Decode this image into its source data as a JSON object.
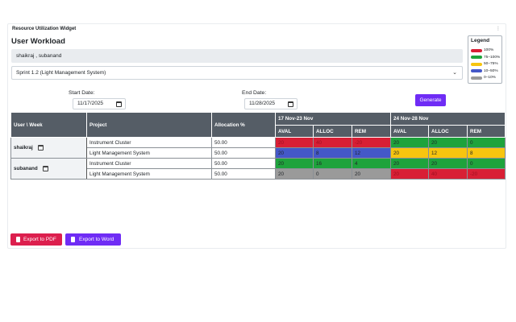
{
  "widget": {
    "title": "Resource Utilization Widget",
    "menu_icon": "kebab-icon"
  },
  "heading": "User Workload",
  "users_value": "shaikraj , subanand",
  "sprint": {
    "selected": "Sprint 1.2 (Light Management System)"
  },
  "legend": {
    "title": "Legend",
    "items": [
      {
        "label": "100%",
        "color": "#d81f35"
      },
      {
        "label": "75–100%",
        "color": "#1ea33c"
      },
      {
        "label": "50–75%",
        "color": "#f7c50f"
      },
      {
        "label": "10–50%",
        "color": "#4458c8"
      },
      {
        "label": "0–10%",
        "color": "#9a9a9a"
      }
    ]
  },
  "filters": {
    "start_label": "Start Date:",
    "start_value": "11/17/2025",
    "end_label": "End Date:",
    "end_value": "11/28/2025",
    "generate_label": "Generate"
  },
  "table": {
    "headers": {
      "user_week": "User \\ Week",
      "project": "Project",
      "allocation": "Allocation %",
      "week1": "17 Nov-23 Nov",
      "week2": "24 Nov-28 Nov",
      "aval": "AVAL",
      "alloc": "ALLOC",
      "rem": "REM"
    },
    "users": [
      {
        "name": "shaikraj",
        "rows": [
          {
            "project": "Instrument Cluster",
            "allocation": "50.00",
            "w1": [
              "20",
              "40",
              "-20"
            ],
            "w1c": [
              "red",
              "red",
              "red"
            ],
            "w2": [
              "20",
              "20",
              "0"
            ],
            "w2c": [
              "green",
              "green",
              "green"
            ]
          },
          {
            "project": "Light Management System",
            "allocation": "50.00",
            "w1": [
              "20",
              "8",
              "12"
            ],
            "w1c": [
              "blue",
              "blue",
              "blue"
            ],
            "w2": [
              "20",
              "12",
              "8"
            ],
            "w2c": [
              "yellow",
              "yellow",
              "yellow"
            ]
          }
        ]
      },
      {
        "name": "subanand",
        "rows": [
          {
            "project": "Instrument Cluster",
            "allocation": "50.00",
            "w1": [
              "20",
              "16",
              "4"
            ],
            "w1c": [
              "green",
              "green",
              "green"
            ],
            "w2": [
              "20",
              "20",
              "0"
            ],
            "w2c": [
              "green",
              "green",
              "green"
            ]
          },
          {
            "project": "Light Management System",
            "allocation": "50.00",
            "w1": [
              "20",
              "0",
              "20"
            ],
            "w1c": [
              "gray",
              "gray",
              "gray"
            ],
            "w2": [
              "20",
              "40",
              "-20"
            ],
            "w2c": [
              "red",
              "red",
              "red"
            ]
          }
        ]
      }
    ]
  },
  "export": {
    "pdf_label": "Export to PDF",
    "word_label": "Export to Word"
  }
}
